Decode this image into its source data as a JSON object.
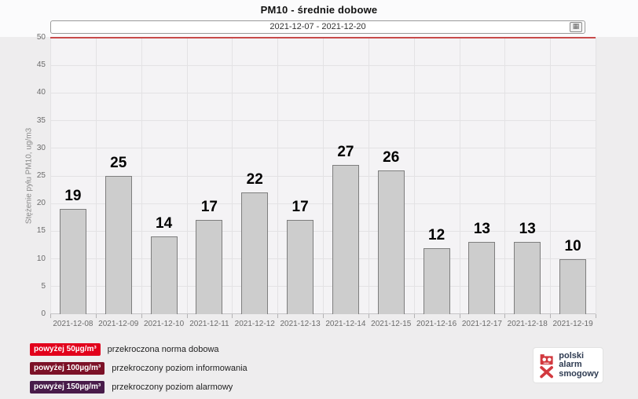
{
  "title": "PM10 - średnie dobowe",
  "date_range": {
    "value": "2021-12-07  -  2021-12-20",
    "calendar_icon": "▦"
  },
  "chart_data": {
    "type": "bar",
    "title": "PM10 - średnie dobowe",
    "ylabel": "Stężenie pyłu PM10, ug/m3",
    "xlabel": "",
    "categories": [
      "2021-12-08",
      "2021-12-09",
      "2021-12-10",
      "2021-12-11",
      "2021-12-12",
      "2021-12-13",
      "2021-12-14",
      "2021-12-15",
      "2021-12-16",
      "2021-12-17",
      "2021-12-18",
      "2021-12-19"
    ],
    "values": [
      19,
      25,
      14,
      17,
      22,
      17,
      27,
      26,
      12,
      13,
      13,
      10
    ],
    "ylim": [
      0,
      50
    ],
    "ytick_step": 5,
    "grid": true,
    "bar_color": "#cdcdcd",
    "bar_border_color": "#7e7e7e",
    "plotline": {
      "value": 50,
      "color": "#c84b4b",
      "label": "norma dobowa"
    }
  },
  "legend": {
    "items": [
      {
        "badge": "powyżej 50µg/m³",
        "badge_color": "#e2001b",
        "label": "przekroczona norma dobowa"
      },
      {
        "badge": "powyżej 100µg/m³",
        "badge_color": "#7c1127",
        "label": "przekroczony poziom informowania"
      },
      {
        "badge": "powyżej 150µg/m³",
        "badge_color": "#481c4a",
        "label": "przekroczony poziom alarmowy"
      }
    ]
  },
  "logo": {
    "lines": [
      "polski",
      "alarm",
      "smogowy"
    ],
    "icon": "smog-skull-icon",
    "icon_color": "#d2393f",
    "text_color": "#2f3c52"
  }
}
